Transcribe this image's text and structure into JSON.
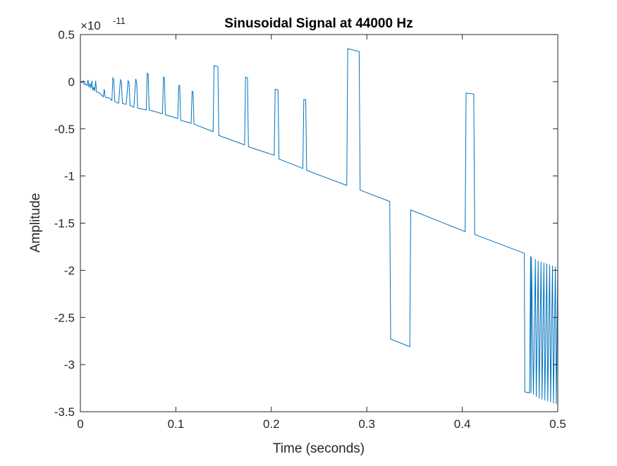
{
  "figure": {
    "background": "#ffffff",
    "axes_color": "#262626"
  },
  "chart_data": {
    "type": "line",
    "title": "Sinusoidal Signal at 44000 Hz",
    "xlabel": "Time (seconds)",
    "ylabel": "Amplitude",
    "xlim": [
      0,
      0.5
    ],
    "ylim": [
      -3.5,
      0.5
    ],
    "y_exponent": "-11",
    "y_multiplier_base": "×10",
    "x_ticks": [
      0,
      0.1,
      0.2,
      0.3,
      0.4,
      0.5
    ],
    "x_tick_labels": [
      "0",
      "0.1",
      "0.2",
      "0.3",
      "0.4",
      "0.5"
    ],
    "y_ticks": [
      -3.5,
      -3,
      -2.5,
      -2,
      -1.5,
      -1,
      -0.5,
      0,
      0.5
    ],
    "y_tick_labels": [
      "-3.5",
      "-3",
      "-2.5",
      "-2",
      "-1.5",
      "-1",
      "-0.5",
      "0",
      "0.5"
    ],
    "grid": false,
    "box": true,
    "series": [
      {
        "color": "#0072BD",
        "x": [
          0,
          0.002,
          0.003,
          0.004,
          0.005,
          0.007,
          0.008,
          0.009,
          0.01,
          0.011,
          0.012,
          0.013,
          0.014,
          0.015,
          0.016,
          0.017,
          0.018,
          0.02,
          0.022,
          0.024,
          0.025,
          0.026,
          0.027,
          0.03,
          0.033,
          0.034,
          0.035,
          0.036,
          0.04,
          0.042,
          0.043,
          0.044,
          0.048,
          0.05,
          0.051,
          0.052,
          0.056,
          0.058,
          0.059,
          0.06,
          0.069,
          0.07,
          0.071,
          0.072,
          0.086,
          0.087,
          0.088,
          0.089,
          0.102,
          0.103,
          0.104,
          0.105,
          0.116,
          0.117,
          0.118,
          0.119,
          0.139,
          0.14,
          0.144,
          0.145,
          0.172,
          0.173,
          0.175,
          0.176,
          0.203,
          0.204,
          0.207,
          0.208,
          0.233,
          0.234,
          0.236,
          0.237,
          0.279,
          0.28,
          0.292,
          0.293,
          0.324,
          0.325,
          0.345,
          0.346,
          0.403,
          0.404,
          0.412,
          0.413,
          0.465,
          0.4655,
          0.4705,
          0.4715,
          0.472,
          0.4725,
          0.4745,
          0.4765,
          0.4775,
          0.4795,
          0.4805,
          0.4825,
          0.4835,
          0.4855,
          0.4865,
          0.4885,
          0.4895,
          0.4915,
          0.4925,
          0.4945,
          0.4955,
          0.4975,
          0.4985,
          0.5
        ],
        "y": [
          0,
          -0.01,
          0.01,
          -0.03,
          -0.02,
          -0.04,
          0.02,
          -0.06,
          -0.02,
          -0.07,
          0.01,
          -0.09,
          -0.06,
          -0.1,
          0.01,
          -0.11,
          -0.11,
          -0.12,
          -0.14,
          -0.16,
          -0.08,
          -0.16,
          -0.17,
          -0.17,
          -0.2,
          0.04,
          0.02,
          -0.21,
          -0.23,
          0.02,
          0,
          -0.23,
          -0.24,
          0.01,
          -0.01,
          -0.25,
          -0.27,
          0.03,
          -0.02,
          -0.28,
          -0.3,
          0.09,
          0.08,
          -0.3,
          -0.34,
          0.05,
          0.04,
          -0.35,
          -0.39,
          -0.04,
          -0.04,
          -0.41,
          -0.44,
          -0.1,
          -0.11,
          -0.45,
          -0.53,
          0.17,
          0.16,
          -0.57,
          -0.67,
          0.05,
          0.04,
          -0.69,
          -0.78,
          -0.08,
          -0.09,
          -0.82,
          -0.92,
          -0.19,
          -0.19,
          -0.94,
          -1.1,
          0.35,
          0.32,
          -1.15,
          -1.27,
          -2.73,
          -2.81,
          -1.36,
          -1.59,
          -0.12,
          -0.13,
          -1.62,
          -1.82,
          -3.29,
          -3.3,
          -1.85,
          -3.3,
          -1.86,
          -3.32,
          -1.88,
          -3.34,
          -1.9,
          -3.36,
          -1.91,
          -3.37,
          -1.92,
          -3.38,
          -1.93,
          -3.39,
          -1.94,
          -3.4,
          -1.95,
          -3.41,
          -1.96,
          -3.42,
          -1.97
        ]
      }
    ]
  }
}
